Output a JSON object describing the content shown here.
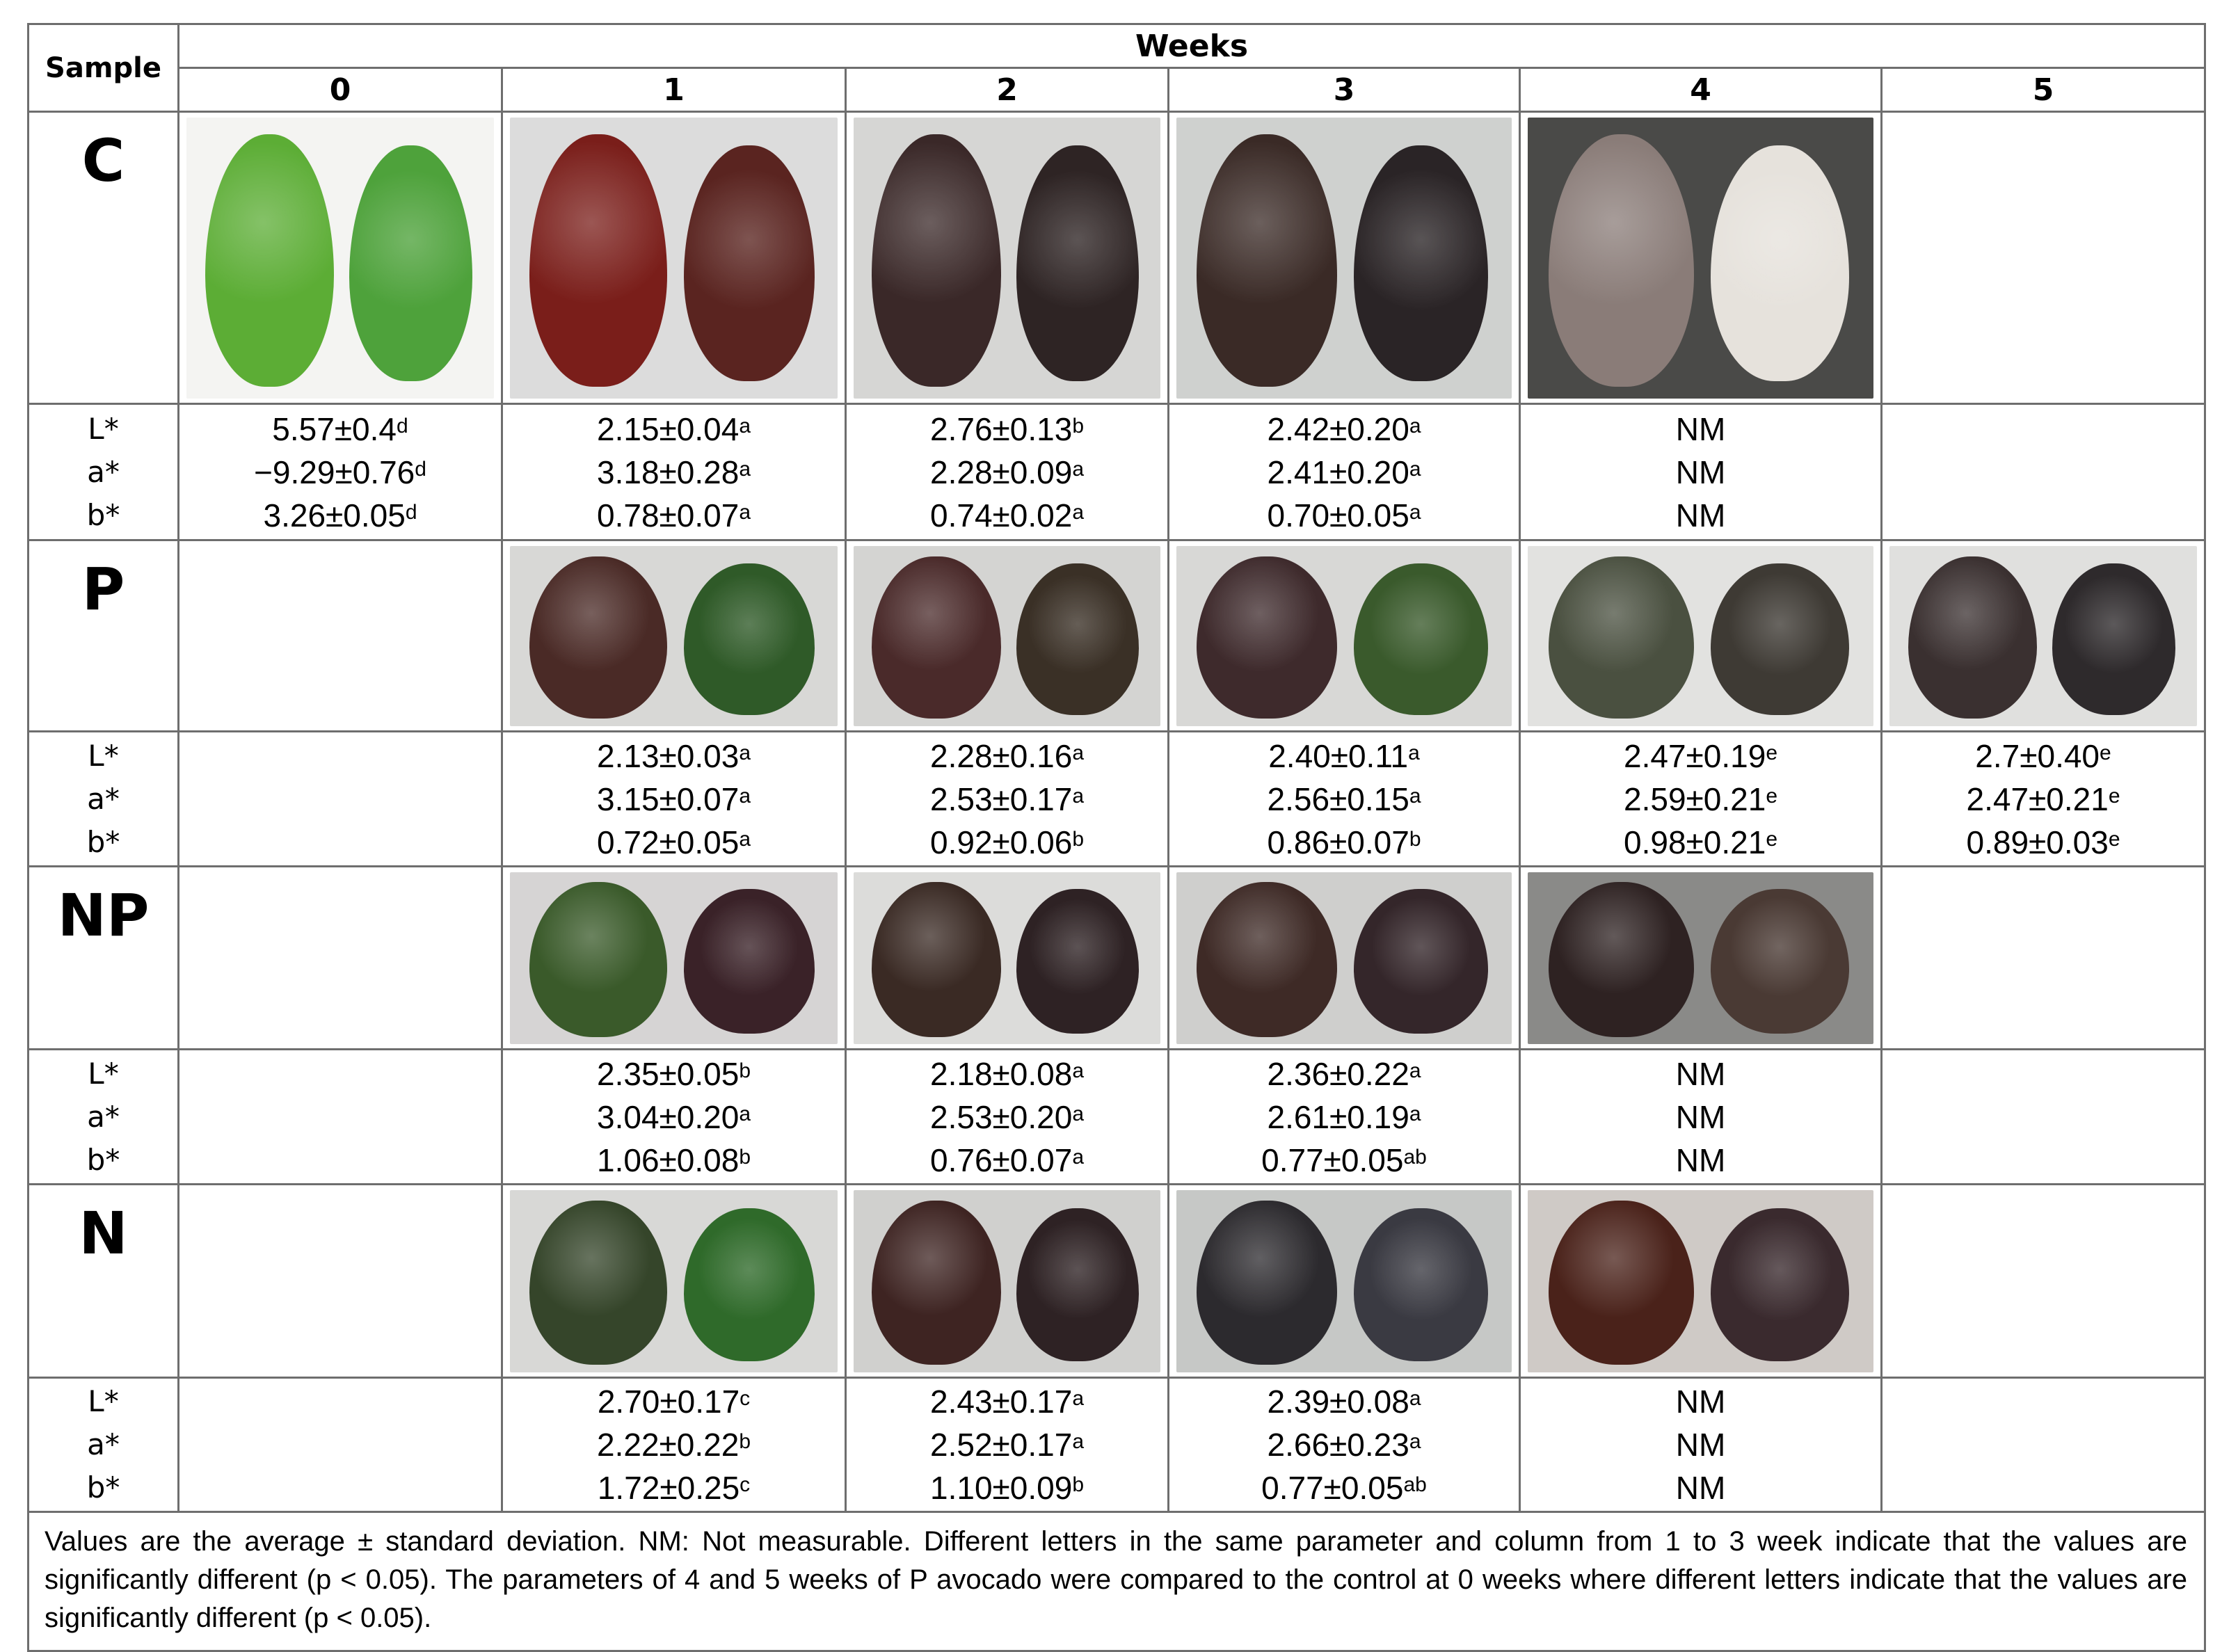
{
  "table": {
    "header": {
      "sample_label": "Sample",
      "weeks_label": "Weeks",
      "weeks": [
        "0",
        "1",
        "2",
        "3",
        "4",
        "5"
      ]
    },
    "params": [
      "L*",
      "a*",
      "b*"
    ],
    "samples": [
      {
        "label": "C",
        "photos": [
          {
            "week": "0",
            "present": true,
            "bg": "#f4f4f2",
            "left": "#5cad35",
            "right": "#4ea23b",
            "desc": "two green avocados"
          },
          {
            "week": "1",
            "present": true,
            "bg": "#dcdcdc",
            "left": "#7a1e1a",
            "right": "#5a2420",
            "desc": "two dark red avocados"
          },
          {
            "week": "2",
            "present": true,
            "bg": "#d6d6d4",
            "left": "#3a2828",
            "right": "#2e2424",
            "desc": "two dark brown avocados"
          },
          {
            "week": "3",
            "present": true,
            "bg": "#cfd1cf",
            "left": "#3a2a26",
            "right": "#2a2426",
            "desc": "two dark avocados"
          },
          {
            "week": "4",
            "present": true,
            "bg": "#4a4a48",
            "left": "#8a7c78",
            "right": "#e6e2dc",
            "desc": "two moldy avocados with white mold"
          },
          {
            "week": "5",
            "present": false
          }
        ],
        "values": [
          {
            "L": {
              "v": "5.57±0.4",
              "s": "d"
            },
            "a": {
              "v": "−9.29±0.76",
              "s": "d"
            },
            "b": {
              "v": "3.26±0.05",
              "s": "d"
            }
          },
          {
            "L": {
              "v": "2.15±0.04",
              "s": "a"
            },
            "a": {
              "v": "3.18±0.28",
              "s": "a"
            },
            "b": {
              "v": "0.78±0.07",
              "s": "a"
            }
          },
          {
            "L": {
              "v": "2.76±0.13",
              "s": "b"
            },
            "a": {
              "v": "2.28±0.09",
              "s": "a"
            },
            "b": {
              "v": "0.74±0.02",
              "s": "a"
            }
          },
          {
            "L": {
              "v": "2.42±0.20",
              "s": "a"
            },
            "a": {
              "v": "2.41±0.20",
              "s": "a"
            },
            "b": {
              "v": "0.70±0.05",
              "s": "a"
            }
          },
          {
            "L": {
              "v": "NM",
              "s": ""
            },
            "a": {
              "v": "NM",
              "s": ""
            },
            "b": {
              "v": "NM",
              "s": ""
            }
          },
          {
            "L": {
              "v": "",
              "s": ""
            },
            "a": {
              "v": "",
              "s": ""
            },
            "b": {
              "v": "",
              "s": ""
            }
          }
        ]
      },
      {
        "label": "P",
        "photos": [
          {
            "week": "0",
            "present": false
          },
          {
            "week": "1",
            "present": true,
            "bg": "#d8d8d6",
            "left": "#4a2a26",
            "right": "#2f5a28",
            "desc": "dark red and green avocados"
          },
          {
            "week": "2",
            "present": true,
            "bg": "#d4d4d2",
            "left": "#4a2a2a",
            "right": "#3a3026",
            "desc": "two dark avocados"
          },
          {
            "week": "3",
            "present": true,
            "bg": "#d8d8d6",
            "left": "#3e2a2c",
            "right": "#3a5a2c",
            "desc": "dark and green-purple avocados"
          },
          {
            "week": "4",
            "present": true,
            "bg": "#e2e2e0",
            "left": "#4a5040",
            "right": "#3e3a34",
            "desc": "two dull greenish-dark avocados"
          },
          {
            "week": "5",
            "present": true,
            "bg": "#e0e0de",
            "left": "#3a3030",
            "right": "#2e2a2c",
            "desc": "two dark avocados"
          }
        ],
        "values": [
          {
            "L": {
              "v": "",
              "s": ""
            },
            "a": {
              "v": "",
              "s": ""
            },
            "b": {
              "v": "",
              "s": ""
            }
          },
          {
            "L": {
              "v": "2.13±0.03",
              "s": "a"
            },
            "a": {
              "v": "3.15±0.07",
              "s": "a"
            },
            "b": {
              "v": "0.72±0.05",
              "s": "a"
            }
          },
          {
            "L": {
              "v": "2.28±0.16",
              "s": "a"
            },
            "a": {
              "v": "2.53±0.17",
              "s": "a"
            },
            "b": {
              "v": "0.92±0.06",
              "s": "b"
            }
          },
          {
            "L": {
              "v": "2.40±0.11",
              "s": "a"
            },
            "a": {
              "v": "2.56±0.15",
              "s": "a"
            },
            "b": {
              "v": "0.86±0.07",
              "s": "b"
            }
          },
          {
            "L": {
              "v": "2.47±0.19",
              "s": "e"
            },
            "a": {
              "v": "2.59±0.21",
              "s": "e"
            },
            "b": {
              "v": "0.98±0.21",
              "s": "e"
            }
          },
          {
            "L": {
              "v": "2.7±0.40",
              "s": "e"
            },
            "a": {
              "v": "2.47±0.21",
              "s": "e"
            },
            "b": {
              "v": "0.89±0.03",
              "s": "e"
            }
          }
        ]
      },
      {
        "label": "NP",
        "photos": [
          {
            "week": "0",
            "present": false
          },
          {
            "week": "1",
            "present": true,
            "bg": "#d6d4d4",
            "left": "#3a5a2a",
            "right": "#3a2228",
            "desc": "green and dark purple avocados"
          },
          {
            "week": "2",
            "present": true,
            "bg": "#dcdcda",
            "left": "#3a2a24",
            "right": "#2e2224",
            "desc": "two dark avocados"
          },
          {
            "week": "3",
            "present": true,
            "bg": "#cfcfcd",
            "left": "#3e2a26",
            "right": "#34262a",
            "desc": "two dark avocados"
          },
          {
            "week": "4",
            "present": true,
            "bg": "#8a8a88",
            "left": "#2e2222",
            "right": "#4a3a34",
            "desc": "two rotting avocados with mold"
          },
          {
            "week": "5",
            "present": false
          }
        ],
        "values": [
          {
            "L": {
              "v": "",
              "s": ""
            },
            "a": {
              "v": "",
              "s": ""
            },
            "b": {
              "v": "",
              "s": ""
            }
          },
          {
            "L": {
              "v": "2.35±0.05",
              "s": "b"
            },
            "a": {
              "v": "3.04±0.20",
              "s": "a"
            },
            "b": {
              "v": "1.06±0.08",
              "s": "b"
            }
          },
          {
            "L": {
              "v": "2.18±0.08",
              "s": "a"
            },
            "a": {
              "v": "2.53±0.20",
              "s": "a"
            },
            "b": {
              "v": "0.76±0.07",
              "s": "a"
            }
          },
          {
            "L": {
              "v": "2.36±0.22",
              "s": "a"
            },
            "a": {
              "v": "2.61±0.19",
              "s": "a"
            },
            "b": {
              "v": "0.77±0.05",
              "s": "ab"
            }
          },
          {
            "L": {
              "v": "NM",
              "s": ""
            },
            "a": {
              "v": "NM",
              "s": ""
            },
            "b": {
              "v": "NM",
              "s": ""
            }
          },
          {
            "L": {
              "v": "",
              "s": ""
            },
            "a": {
              "v": "",
              "s": ""
            },
            "b": {
              "v": "",
              "s": ""
            }
          }
        ]
      },
      {
        "label": "N",
        "photos": [
          {
            "week": "0",
            "present": false
          },
          {
            "week": "1",
            "present": true,
            "bg": "#d8d8d6",
            "left": "#35452a",
            "right": "#2f6a2a",
            "desc": "two green avocados with dark tint"
          },
          {
            "week": "2",
            "present": true,
            "bg": "#d0d0ce",
            "left": "#3e2422",
            "right": "#2e2224",
            "desc": "two dark avocados"
          },
          {
            "week": "3",
            "present": true,
            "bg": "#c6c8c6",
            "left": "#2c2a2e",
            "right": "#3a3a42",
            "desc": "two dark avocados with white spots"
          },
          {
            "week": "4",
            "present": true,
            "bg": "#cfcac6",
            "left": "#4a221a",
            "right": "#3a2a2e",
            "desc": "two rotting avocados"
          },
          {
            "week": "5",
            "present": false
          }
        ],
        "values": [
          {
            "L": {
              "v": "",
              "s": ""
            },
            "a": {
              "v": "",
              "s": ""
            },
            "b": {
              "v": "",
              "s": ""
            }
          },
          {
            "L": {
              "v": "2.70±0.17",
              "s": "c"
            },
            "a": {
              "v": "2.22±0.22",
              "s": "b"
            },
            "b": {
              "v": "1.72±0.25",
              "s": "c"
            }
          },
          {
            "L": {
              "v": "2.43±0.17",
              "s": "a"
            },
            "a": {
              "v": "2.52±0.17",
              "s": "a"
            },
            "b": {
              "v": "1.10±0.09",
              "s": "b"
            }
          },
          {
            "L": {
              "v": "2.39±0.08",
              "s": "a"
            },
            "a": {
              "v": "2.66±0.23",
              "s": "a"
            },
            "b": {
              "v": "0.77±0.05",
              "s": "ab"
            }
          },
          {
            "L": {
              "v": "NM",
              "s": ""
            },
            "a": {
              "v": "NM",
              "s": ""
            },
            "b": {
              "v": "NM",
              "s": ""
            }
          },
          {
            "L": {
              "v": "",
              "s": ""
            },
            "a": {
              "v": "",
              "s": ""
            },
            "b": {
              "v": "",
              "s": ""
            }
          }
        ]
      }
    ],
    "footnote": "Values are the average ± standard deviation. NM: Not measurable. Different letters in the same parameter and column from 1 to 3 week indicate that the values are significantly different (p < 0.05). The parameters of 4 and 5 weeks of P avocado were compared to the control at 0 weeks where different letters indicate that the values are significantly different (p < 0.05)."
  },
  "colors": {
    "border": "#6e6e6e",
    "text": "#000000",
    "background": "#ffffff"
  }
}
